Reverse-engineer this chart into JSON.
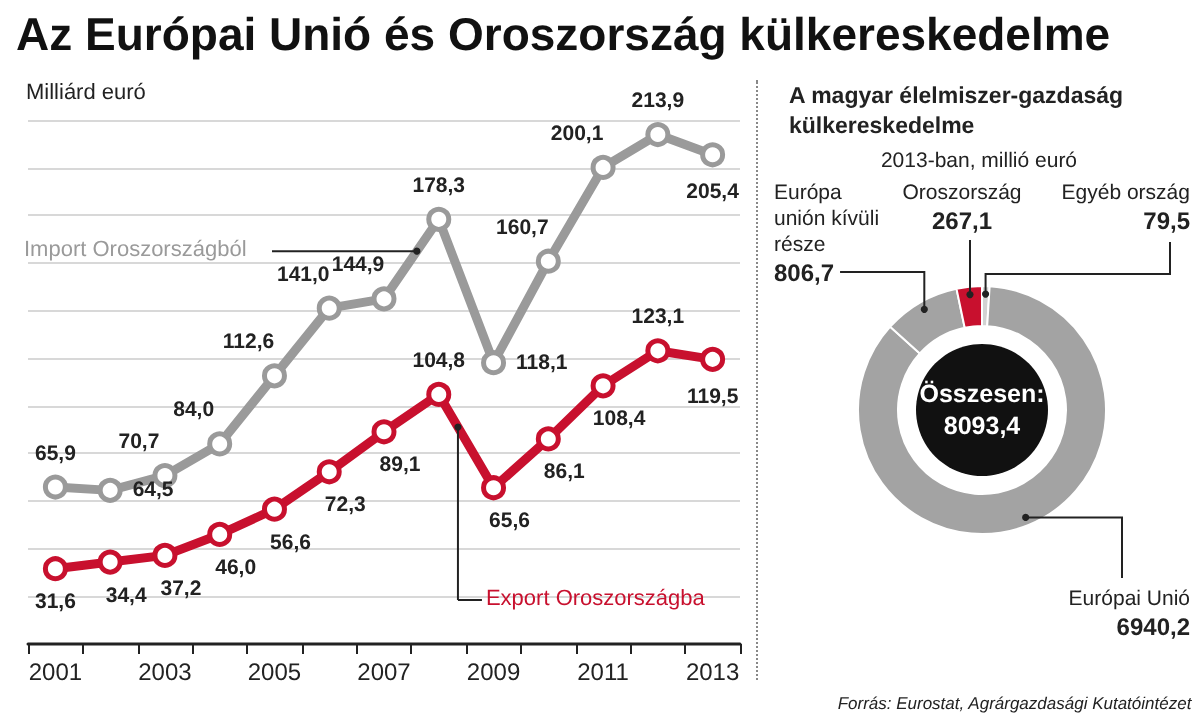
{
  "chart_data": [
    {
      "type": "line",
      "title": "Az Európai Unió és Oroszország külkereskedelme",
      "ylabel": "Milliárd euró",
      "categories": [
        "2001",
        null,
        "2003",
        null,
        "2005",
        null,
        "2007",
        null,
        "2009",
        null,
        "2011",
        null,
        "2013"
      ],
      "series": [
        {
          "name": "Import Oroszországból",
          "color": "#9a9a9a",
          "values": [
            65.9,
            64.5,
            70.7,
            84.0,
            112.6,
            141.0,
            144.9,
            178.3,
            118.1,
            160.7,
            200.1,
            213.9,
            205.4
          ],
          "value_labels": [
            "65,9",
            "64,5",
            "70,7",
            "84,0",
            "112,6",
            "141,0",
            "144,9",
            "178,3",
            "118,1",
            "160,7",
            "200,1",
            "213,9",
            "205,4"
          ]
        },
        {
          "name": "Export Oroszországba",
          "color": "#c8102e",
          "values": [
            31.6,
            34.4,
            37.2,
            46.0,
            56.6,
            72.3,
            89.1,
            104.8,
            65.6,
            86.1,
            108.4,
            123.1,
            119.5
          ],
          "value_labels": [
            "31,6",
            "34,4",
            "37,2",
            "46,0",
            "56,6",
            "72,3",
            "89,1",
            "104,8",
            "65,6",
            "86,1",
            "108,4",
            "123,1",
            "119,5"
          ]
        }
      ],
      "ylim": [
        0,
        220
      ],
      "yticks": [
        {
          "value": 20,
          "label": null
        },
        {
          "value": 40,
          "label": null
        },
        {
          "value": 60,
          "label": null
        },
        {
          "value": 80,
          "label": null
        },
        {
          "value": 100,
          "label": null
        },
        {
          "value": 120,
          "label": null
        },
        {
          "value": 140,
          "label": null
        },
        {
          "value": 160,
          "label": null
        },
        {
          "value": 180,
          "label": null
        },
        {
          "value": 200,
          "label": null
        },
        {
          "value": 220,
          "label": null
        }
      ],
      "tick_labels": "x",
      "grid": "y",
      "marker": "circle",
      "line_style": "solid",
      "legend": false
    },
    {
      "type": "donut",
      "title": "A magyar élelmiszer-gazdaság külkereskedelme",
      "subtitle": "2013-ban, millió euró",
      "categories": [
        "Egyéb ország",
        "Európai Unió",
        "Európa unión kívüli része",
        "Oroszország"
      ],
      "values": [
        79.5,
        6940.2,
        806.7,
        267.1
      ],
      "value_labels": [
        "79,5",
        "6940,2",
        "806,7",
        "267,1"
      ],
      "colors": [
        "#d2d2d2",
        "#a3a3a3",
        "#a3a3a3",
        "#c8102e"
      ],
      "annotations": [
        "Összesen:\n8093,4",
        "Forrás: Eurostat, Agrárgazdasági Kutatóintézet"
      ],
      "legend": false
    }
  ]
}
